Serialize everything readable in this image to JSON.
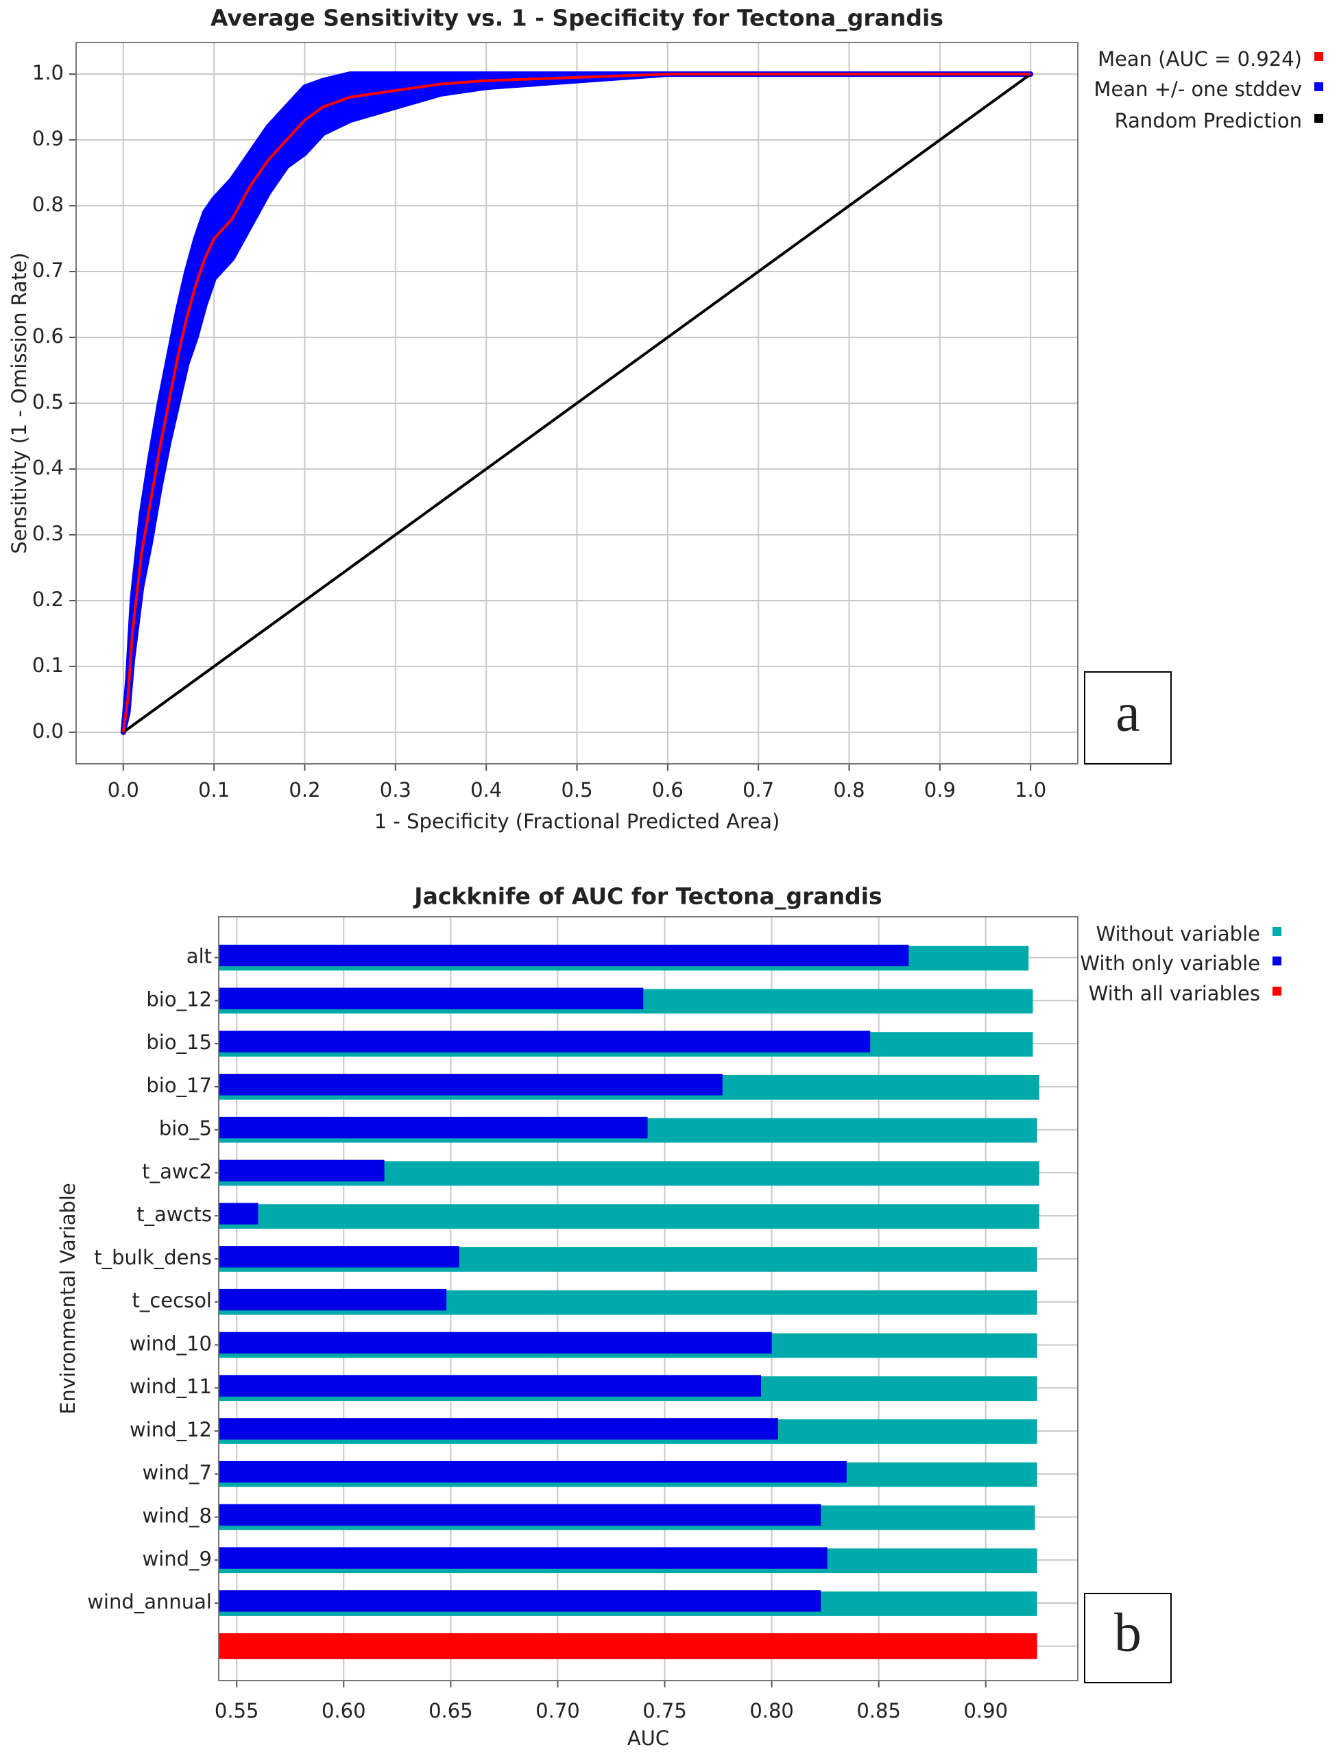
{
  "chart_data": [
    {
      "type": "line",
      "title": "Average Sensitivity vs. 1 - Specificity for Tectona_grandis",
      "xlabel": "1 - Specificity (Fractional Predicted Area)",
      "ylabel": "Sensitivity (1 - Omission Rate)",
      "annotation": "a",
      "xlim": [
        -0.052,
        1.052
      ],
      "ylim": [
        -0.048,
        1.048
      ],
      "xticks": [
        {
          "value": 0,
          "label": "0.0"
        },
        0.1,
        0.2,
        0.3,
        0.4,
        0.5,
        0.6,
        0.7,
        0.8,
        0.9,
        {
          "value": 1,
          "label": "1.0"
        }
      ],
      "yticks": [
        {
          "value": 0,
          "label": "0.0"
        },
        0.1,
        0.2,
        0.3,
        0.4,
        0.5,
        0.6,
        0.7,
        0.8,
        0.9,
        {
          "value": 1,
          "label": "1.0"
        }
      ],
      "grid": true,
      "legend": "right",
      "x": [
        0,
        0.005,
        0.01,
        0.02,
        0.03,
        0.04,
        0.05,
        0.06,
        0.07,
        0.08,
        0.09,
        0.1,
        0.12,
        0.14,
        0.16,
        0.18,
        0.2,
        0.22,
        0.25,
        0.3,
        0.35,
        0.4,
        0.5,
        0.6,
        1
      ],
      "series": [
        {
          "name": "Mean (AUC = 0.924)",
          "color": "#ff0000",
          "values": [
            0,
            0.05,
            0.15,
            0.27,
            0.35,
            0.43,
            0.5,
            0.57,
            0.63,
            0.68,
            0.72,
            0.75,
            0.78,
            0.83,
            0.87,
            0.9,
            0.93,
            0.95,
            0.965,
            0.975,
            0.985,
            0.99,
            0.995,
            1,
            1
          ]
        },
        {
          "name": "Mean +/- one stddev",
          "color": "#0000ff",
          "upper": [
            0,
            0.08,
            0.2,
            0.33,
            0.42,
            0.5,
            0.57,
            0.64,
            0.7,
            0.75,
            0.79,
            0.81,
            0.84,
            0.88,
            0.92,
            0.95,
            0.98,
            0.99,
            1,
            1,
            1,
            1,
            1,
            1,
            1
          ],
          "lower": [
            0,
            0.03,
            0.11,
            0.22,
            0.29,
            0.37,
            0.44,
            0.5,
            0.56,
            0.6,
            0.65,
            0.69,
            0.72,
            0.77,
            0.82,
            0.86,
            0.88,
            0.91,
            0.93,
            0.95,
            0.97,
            0.98,
            0.99,
            1,
            1
          ]
        },
        {
          "name": "Random Prediction",
          "color": "#000000",
          "x": [
            0,
            1
          ],
          "values": [
            0,
            1
          ]
        }
      ]
    },
    {
      "type": "bar",
      "orientation": "horizontal",
      "title": "Jackknife of AUC for Tectona_grandis",
      "xlabel": "AUC",
      "ylabel": "Environmental Variable",
      "annotation": "b",
      "xlim": [
        0.5416,
        0.943
      ],
      "xticks": [
        0.55,
        {
          "value": 0.6,
          "label": "0.60"
        },
        0.65,
        {
          "value": 0.7,
          "label": "0.70"
        },
        0.75,
        {
          "value": 0.8,
          "label": "0.80"
        },
        0.85,
        {
          "value": 0.9,
          "label": "0.90"
        }
      ],
      "grid": true,
      "legend": "right",
      "categories": [
        "alt",
        "bio_12",
        "bio_15",
        "bio_17",
        "bio_5",
        "t_awc2",
        "t_awcts",
        "t_bulk_dens",
        "t_cecsol",
        "wind_10",
        "wind_11",
        "wind_12",
        "wind_7",
        "wind_8",
        "wind_9",
        "wind_annual",
        null
      ],
      "series": [
        {
          "name": "Without variable",
          "color": "#00aaaa",
          "values": [
            0.92,
            0.922,
            0.922,
            0.925,
            0.924,
            0.925,
            0.925,
            0.924,
            0.924,
            0.924,
            0.924,
            0.924,
            0.924,
            0.923,
            0.924,
            0.924,
            null
          ]
        },
        {
          "name": "With only variable",
          "color": "#0000e6",
          "values": [
            0.864,
            0.74,
            0.846,
            0.777,
            0.742,
            0.619,
            0.56,
            0.654,
            0.648,
            0.8,
            0.795,
            0.803,
            0.835,
            0.823,
            0.826,
            0.823,
            null
          ]
        },
        {
          "name": "With all variables",
          "color": "#ff0000",
          "values": [
            null,
            null,
            null,
            null,
            null,
            null,
            null,
            null,
            null,
            null,
            null,
            null,
            null,
            null,
            null,
            null,
            0.924
          ]
        }
      ]
    }
  ]
}
